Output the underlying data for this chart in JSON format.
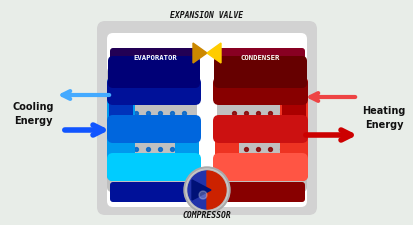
{
  "bg_color": "#e8ede8",
  "housing_fill": "#d2d2d2",
  "housing_edge": "#b0b0b0",
  "white": "#ffffff",
  "compressor_label": "COMPRESSOR",
  "evaporator_label": "EVAPORATOR",
  "condenser_label": "CONDENSER",
  "expansion_label": "EXPANSION VALVE",
  "cooling_label": "Cooling\nEnergy",
  "heating_label": "Heating\nEnergy",
  "blue1": "#00ccff",
  "blue2": "#0099ee",
  "blue3": "#0066dd",
  "blue4": "#0033bb",
  "blue5": "#001199",
  "blue6": "#000077",
  "red1": "#ff5544",
  "red2": "#ee3322",
  "red3": "#cc1111",
  "red4": "#aa0000",
  "red5": "#880000",
  "red6": "#660000",
  "purple_dark": "#220055",
  "maroon_dark": "#880022",
  "dot_blue": "#0066cc",
  "dot_red": "#880000",
  "gray_plate": "#c0c0c0",
  "gold1": "#cc8800",
  "gold2": "#ffcc00",
  "arrow_blue_in": "#1155ff",
  "arrow_blue_out": "#44aaff",
  "arrow_red_out": "#cc0000",
  "arrow_red_in": "#ee4444"
}
